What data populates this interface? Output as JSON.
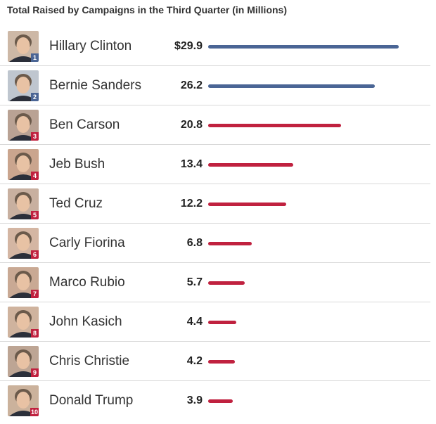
{
  "chart_data": {
    "type": "bar",
    "title": "Total Raised by Campaigns in the Third Quarter (in Millions)",
    "categories": [
      "Hillary Clinton",
      "Bernie Sanders",
      "Ben Carson",
      "Jeb Bush",
      "Ted Cruz",
      "Carly Fiorina",
      "Marco Rubio",
      "John Kasich",
      "Chris Christie",
      "Donald Trump"
    ],
    "values": [
      29.9,
      26.2,
      20.8,
      13.4,
      12.2,
      6.8,
      5.7,
      4.4,
      4.2,
      3.9
    ],
    "value_labels": [
      "$29.9",
      "26.2",
      "20.8",
      "13.4",
      "12.2",
      "6.8",
      "5.7",
      "4.4",
      "4.2",
      "3.9"
    ],
    "ranks": [
      "1",
      "2",
      "3",
      "4",
      "5",
      "6",
      "7",
      "8",
      "9",
      "10"
    ],
    "parties": [
      "dem",
      "dem",
      "rep",
      "rep",
      "rep",
      "rep",
      "rep",
      "rep",
      "rep",
      "rep"
    ],
    "orientation": "horizontal",
    "xlim": [
      0,
      29.9
    ],
    "grid": false,
    "legend": "none"
  },
  "colors": {
    "dem": "#4a6595",
    "rep": "#c0213f",
    "photo_bg": [
      "#cdb8a6",
      "#bfc6cf",
      "#b9a294",
      "#caa58e",
      "#c8b0a0",
      "#d4b6a3",
      "#c9a994",
      "#cfb39e",
      "#bda594",
      "#cbb29c"
    ]
  }
}
